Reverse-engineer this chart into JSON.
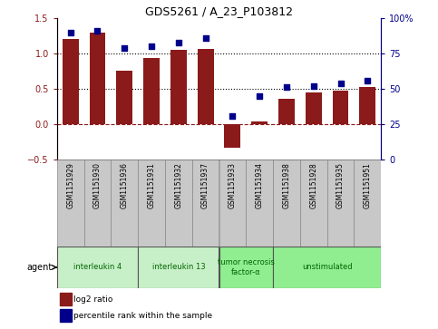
{
  "title": "GDS5261 / A_23_P103812",
  "samples": [
    "GSM1151929",
    "GSM1151930",
    "GSM1151936",
    "GSM1151931",
    "GSM1151932",
    "GSM1151937",
    "GSM1151933",
    "GSM1151934",
    "GSM1151938",
    "GSM1151928",
    "GSM1151935",
    "GSM1151951"
  ],
  "log2_ratio": [
    1.2,
    1.3,
    0.75,
    0.93,
    1.05,
    1.07,
    -0.33,
    0.04,
    0.36,
    0.45,
    0.47,
    0.52
  ],
  "percentile": [
    90,
    91,
    79,
    80,
    83,
    86,
    31,
    45,
    51,
    52,
    54,
    56
  ],
  "bar_color": "#8B1A1A",
  "dot_color": "#00008B",
  "groups": [
    {
      "label": "interleukin 4",
      "start": 0,
      "end": 2,
      "color": "#c8f0c8"
    },
    {
      "label": "interleukin 13",
      "start": 3,
      "end": 5,
      "color": "#c8f0c8"
    },
    {
      "label": "tumor necrosis\nfactor-α",
      "start": 6,
      "end": 7,
      "color": "#90ee90"
    },
    {
      "label": "unstimulated",
      "start": 8,
      "end": 11,
      "color": "#90ee90"
    }
  ],
  "ylim_left": [
    -0.5,
    1.5
  ],
  "ylim_right": [
    0,
    100
  ],
  "yticks_left": [
    -0.5,
    0,
    0.5,
    1.0,
    1.5
  ],
  "yticks_right": [
    0,
    25,
    50,
    75,
    100
  ],
  "hline_y": [
    0.5,
    1.0
  ],
  "zero_line_y": 0,
  "legend_items": [
    {
      "label": "log2 ratio",
      "color": "#8B1A1A"
    },
    {
      "label": "percentile rank within the sample",
      "color": "#00008B"
    }
  ],
  "agent_label": "agent",
  "bar_width": 0.6,
  "sample_box_color": "#c8c8c8",
  "sample_box_edge": "#888888"
}
